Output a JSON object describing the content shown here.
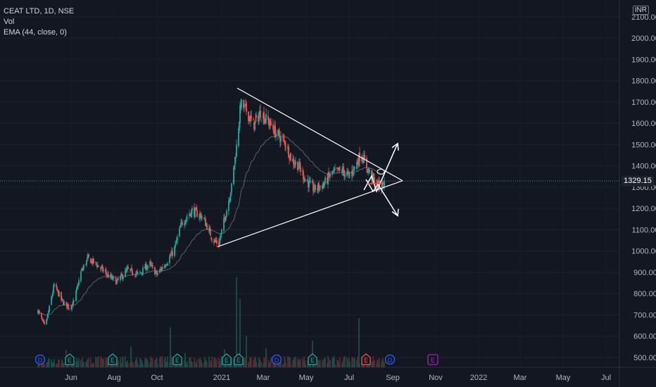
{
  "legend": {
    "symbol_line": "CEAT LTD, 1D, NSE",
    "vol_label": "Vol",
    "ema_label": "EMA (44, close, 0)"
  },
  "currency_badge": "INR",
  "last_price_label": "1329.15",
  "colors": {
    "background": "#131722",
    "up": "#26a69a",
    "down": "#ef5350",
    "drawing": "#ffffff",
    "ema": "#5d606b",
    "price_line": "#26a69a",
    "earnings_badge": "#26a69a",
    "dividend_badge": "#2962ff",
    "future_badge": "#9c27b0"
  },
  "chart_data": {
    "type": "candlestick",
    "symbol": "CEAT LTD",
    "interval": "1D",
    "exchange": "NSE",
    "y_ticks": [
      500,
      600,
      700,
      800,
      900,
      1000,
      1100,
      1200,
      1300,
      1400,
      1500,
      1600,
      1700,
      1800,
      1900,
      2000,
      2100
    ],
    "y_tick_labels": [
      "500.00",
      "600.00",
      "700.00",
      "800.00",
      "900.00",
      "1000.00",
      "1100.00",
      "1200.00",
      "1300.00",
      "1400.00",
      "1500.00",
      "1600.00",
      "1700.00",
      "1800.00",
      "1900.00",
      "2000.00",
      "2100.00"
    ],
    "x_ticks": [
      "Jun",
      "Aug",
      "Oct",
      "2021",
      "Mar",
      "May",
      "Jul",
      "Sep",
      "Nov",
      "2022",
      "Mar",
      "May",
      "Jul"
    ],
    "ylim": [
      470,
      2165
    ],
    "last_price": 1329.15,
    "price_path": [
      [
        "2020-04-15",
        720
      ],
      [
        "2020-04-25",
        640
      ],
      [
        "2020-05-08",
        840
      ],
      [
        "2020-05-20",
        760
      ],
      [
        "2020-05-30",
        735
      ],
      [
        "2020-06-05",
        760
      ],
      [
        "2020-06-15",
        900
      ],
      [
        "2020-06-25",
        965
      ],
      [
        "2020-07-10",
        930
      ],
      [
        "2020-07-25",
        880
      ],
      [
        "2020-08-05",
        855
      ],
      [
        "2020-08-20",
        910
      ],
      [
        "2020-09-05",
        890
      ],
      [
        "2020-09-20",
        940
      ],
      [
        "2020-10-01",
        890
      ],
      [
        "2020-10-15",
        950
      ],
      [
        "2020-10-25",
        1000
      ],
      [
        "2020-11-05",
        1130
      ],
      [
        "2020-11-20",
        1190
      ],
      [
        "2020-12-05",
        1160
      ],
      [
        "2020-12-20",
        1050
      ],
      [
        "2020-12-28",
        1035
      ],
      [
        "2021-01-05",
        1150
      ],
      [
        "2021-01-15",
        1300
      ],
      [
        "2021-01-22",
        1490
      ],
      [
        "2021-01-28",
        1690
      ],
      [
        "2021-02-05",
        1660
      ],
      [
        "2021-02-15",
        1590
      ],
      [
        "2021-02-25",
        1650
      ],
      [
        "2021-03-10",
        1600
      ],
      [
        "2021-03-20",
        1550
      ],
      [
        "2021-04-01",
        1510
      ],
      [
        "2021-04-10",
        1430
      ],
      [
        "2021-04-20",
        1400
      ],
      [
        "2021-05-01",
        1330
      ],
      [
        "2021-05-12",
        1290
      ],
      [
        "2021-05-25",
        1310
      ],
      [
        "2021-06-05",
        1360
      ],
      [
        "2021-06-20",
        1380
      ],
      [
        "2021-07-01",
        1350
      ],
      [
        "2021-07-10",
        1400
      ],
      [
        "2021-07-18",
        1460
      ],
      [
        "2021-07-28",
        1380
      ],
      [
        "2021-08-05",
        1330
      ],
      [
        "2021-08-15",
        1300
      ],
      [
        "2021-08-22",
        1329.15
      ]
    ],
    "volume_spikes": [
      [
        "2021-01-22",
        0.95
      ],
      [
        "2021-01-27",
        0.72
      ],
      [
        "2021-02-05",
        0.33
      ],
      [
        "2020-08-25",
        0.22
      ],
      [
        "2020-10-20",
        0.42
      ],
      [
        "2021-07-15",
        0.52
      ],
      [
        "2021-05-10",
        0.28
      ],
      [
        "2020-05-25",
        0.18
      ],
      [
        "2021-03-05",
        0.2
      ],
      [
        "2020-11-10",
        0.15
      ],
      [
        "2021-01-05",
        0.19
      ]
    ],
    "event_badges": [
      {
        "date": "2020-04-18",
        "label": "D",
        "kind": "dividend"
      },
      {
        "date": "2020-05-30",
        "label": "E",
        "kind": "earnings"
      },
      {
        "date": "2020-07-30",
        "label": "E",
        "kind": "earnings"
      },
      {
        "date": "2020-10-30",
        "label": "E",
        "kind": "earnings"
      },
      {
        "date": "2021-01-08",
        "label": "E",
        "kind": "earnings"
      },
      {
        "date": "2021-01-25",
        "label": "E",
        "kind": "earnings"
      },
      {
        "date": "2021-03-20",
        "label": "D",
        "kind": "dividend"
      },
      {
        "date": "2021-05-10",
        "label": "E",
        "kind": "earnings"
      },
      {
        "date": "2021-07-25",
        "label": "E",
        "kind": "earnings-red"
      },
      {
        "date": "2021-08-28",
        "label": "D",
        "kind": "dividend"
      },
      {
        "date": "2021-10-28",
        "label": "E",
        "kind": "future"
      }
    ],
    "drawings": {
      "triangle_upper": [
        [
          "2021-01-23",
          1765
        ],
        [
          "2021-09-15",
          1330
        ]
      ],
      "triangle_lower": [
        [
          "2020-12-26",
          1020
        ],
        [
          "2021-09-15",
          1330
        ]
      ],
      "upper_arrow_head": [
        "2021-09-08",
        1505
      ],
      "lower_arrow_head": [
        "2021-09-08",
        1165
      ]
    }
  }
}
